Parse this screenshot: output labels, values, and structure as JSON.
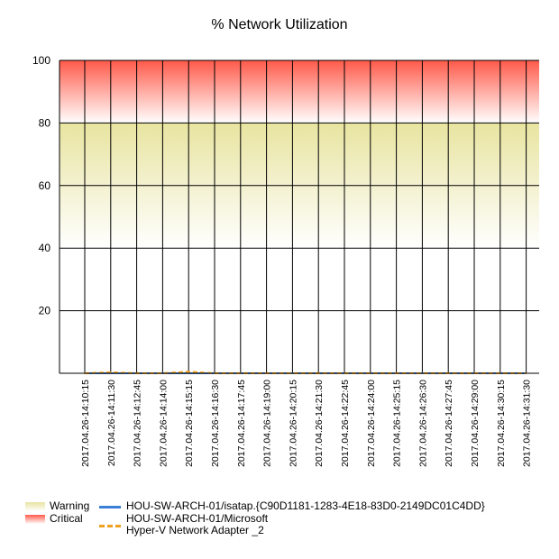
{
  "chart_data": {
    "type": "line",
    "title": "% Network Utilization",
    "xlabel": "",
    "ylabel": "",
    "ylim": [
      0,
      100
    ],
    "yticks": [
      20,
      40,
      60,
      80,
      100
    ],
    "grid": true,
    "legend_position": "bottom-left",
    "categories": [
      "2017.04.26-14:10:15",
      "2017.04.26-14:11:30",
      "2017.04.26-14:12:45",
      "2017.04.26-14:14:00",
      "2017.04.26-14:15:15",
      "2017.04.26-14:16:30",
      "2017.04.26-14:17:45",
      "2017.04.26-14:19:00",
      "2017.04.26-14:20:15",
      "2017.04.26-14:21:30",
      "2017.04.26-14:22:45",
      "2017.04.26-14:24:00",
      "2017.04.26-14:25:15",
      "2017.04.26-14:26:30",
      "2017.04.26-14:27:45",
      "2017.04.26-14:29:00",
      "2017.04.26-14:30:15",
      "2017.04.26-14:31:30"
    ],
    "bands": [
      {
        "name": "Warning",
        "from": 40,
        "to": 80,
        "color": "#e8e4a0"
      },
      {
        "name": "Critical",
        "from": 80,
        "to": 100,
        "color": "#ff5a4a"
      }
    ],
    "series": [
      {
        "name": "HOU-SW-ARCH-01/isatap.{C90D1181-1283-4E18-83D0-2149DC01C4DD}",
        "color": "#3c7fd6",
        "style": "solid",
        "values": [
          0,
          0,
          0,
          0,
          0,
          0,
          0,
          0,
          0,
          0,
          0,
          0,
          0,
          0,
          0,
          0,
          0,
          0
        ]
      },
      {
        "name": "HOU-SW-ARCH-01/Microsoft Hyper-V Network Adapter _2",
        "color": "#f0a020",
        "style": "dashed",
        "values": [
          0,
          0.3,
          0,
          0,
          0.5,
          0,
          0,
          0,
          0,
          0,
          0,
          0,
          0,
          0,
          0,
          0,
          0,
          0
        ]
      }
    ]
  },
  "legend": {
    "warning": "Warning",
    "critical": "Critical",
    "series1": "HOU-SW-ARCH-01/isatap.{C90D1181-1283-4E18-83D0-2149DC01C4DD}",
    "series2_line1": "HOU-SW-ARCH-01/Microsoft",
    "series2_line2": "Hyper-V Network Adapter _2"
  }
}
